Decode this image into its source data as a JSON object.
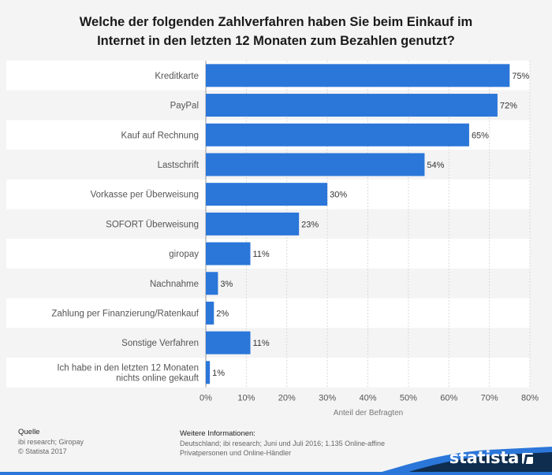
{
  "title_line1": "Welche der folgenden Zahlverfahren haben Sie beim Einkauf im",
  "title_line2": "Internet in den letzten 12 Monaten zum Bezahlen genutzt?",
  "footer": {
    "source_label": "Quelle",
    "source_text": "ibi research; Giropay",
    "copyright": "© Statista 2017",
    "info_label": "Weitere Informationen:",
    "info_line1": "Deutschland; ibi research; Juni und Juli 2016; 1.135 Online-affine",
    "info_line2": "Privatpersonen und Online-Händler"
  },
  "brand": "statista",
  "colors": {
    "bar": "#2b76d9",
    "band_dark": "#0e2d4f",
    "band_accent": "#2b76d9"
  },
  "chart_data": {
    "type": "bar",
    "orientation": "horizontal",
    "categories": [
      [
        "Kreditkarte"
      ],
      [
        "PayPal"
      ],
      [
        "Kauf auf Rechnung"
      ],
      [
        "Lastschrift"
      ],
      [
        "Vorkasse per Überweisung"
      ],
      [
        "SOFORT Überweisung"
      ],
      [
        "giropay"
      ],
      [
        "Nachnahme"
      ],
      [
        "Zahlung per Finanzierung/Ratenkauf"
      ],
      [
        "Sonstige Verfahren"
      ],
      [
        "Ich habe in den letzten 12 Monaten",
        "nichts online gekauft"
      ]
    ],
    "values": [
      75,
      72,
      65,
      54,
      30,
      23,
      11,
      3,
      2,
      11,
      1
    ],
    "value_labels": [
      "75%",
      "72%",
      "65%",
      "54%",
      "30%",
      "23%",
      "11%",
      "3%",
      "2%",
      "11%",
      "1%"
    ],
    "xlabel": "Anteil der Befragten",
    "xlim": [
      0,
      80
    ],
    "xticks": [
      0,
      10,
      20,
      30,
      40,
      50,
      60,
      70,
      80
    ],
    "xtick_labels": [
      "0%",
      "10%",
      "20%",
      "30%",
      "40%",
      "50%",
      "60%",
      "70%",
      "80%"
    ],
    "grid": true
  }
}
